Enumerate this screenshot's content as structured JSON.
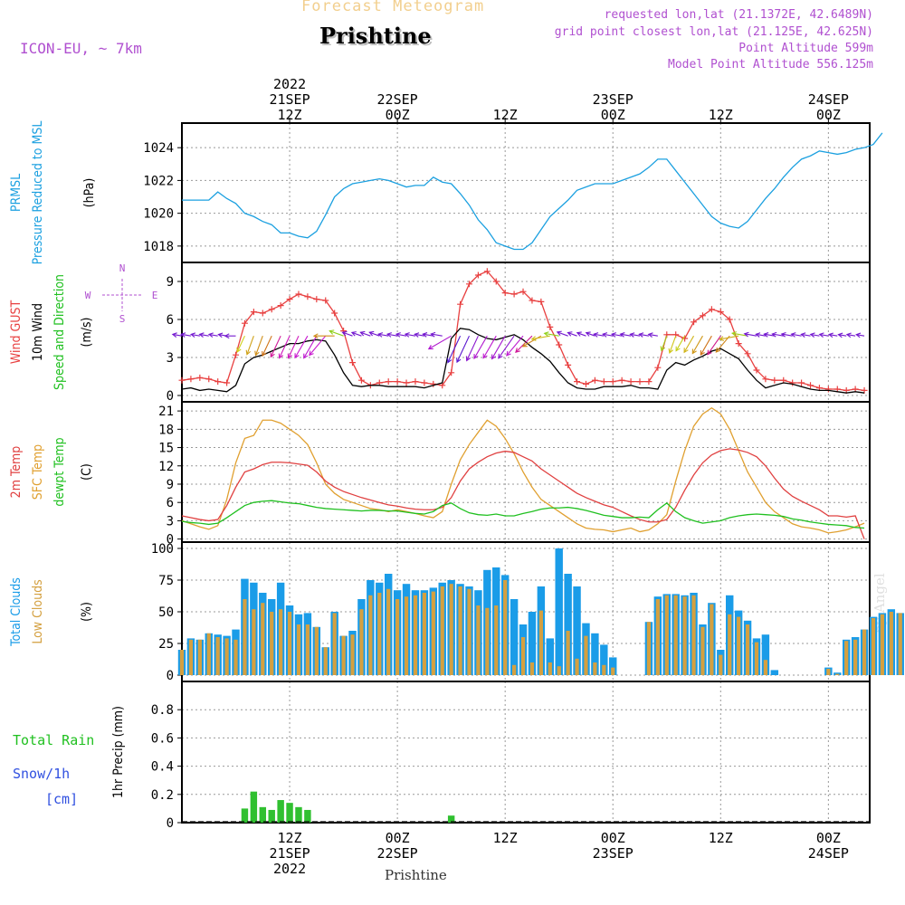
{
  "header": {
    "product": "Forecast Meteogram",
    "location": "Prishtine",
    "model": "ICON-EU, ~ 7km",
    "requested": "requested lon,lat (21.1372E, 42.6489N)",
    "gridpoint": "grid point closest lon,lat (21.125E, 42.625N)",
    "point_alt": "Point Altitude 599m",
    "model_alt": "Model Point Altitude 556.125m",
    "footer_location": "Prishtine",
    "watermark": "by Angel"
  },
  "colors": {
    "pressure": "#1ba0e0",
    "gust": "#e84040",
    "wind": "#000000",
    "temp": "#e04040",
    "sfc_temp": "#e0a030",
    "dewpt": "#20c020",
    "total_cloud": "#1a9ce8",
    "low_cloud": "#d4a040",
    "rain": "#30c030",
    "label_purple": "#b050d0",
    "label_blue": "#3050e0"
  },
  "time_axis": {
    "top_labels": [
      {
        "t": 12,
        "lines": [
          "2022",
          "21SEP",
          "12Z"
        ]
      },
      {
        "t": 24,
        "lines": [
          "22SEP",
          "00Z"
        ]
      },
      {
        "t": 36,
        "lines": [
          "12Z"
        ]
      },
      {
        "t": 48,
        "lines": [
          "23SEP",
          "00Z"
        ]
      },
      {
        "t": 60,
        "lines": [
          "12Z"
        ]
      },
      {
        "t": 72,
        "lines": [
          "24SEP",
          "00Z"
        ]
      }
    ],
    "bottom_labels": [
      {
        "t": 12,
        "lines": [
          "12Z",
          "21SEP",
          "2022"
        ]
      },
      {
        "t": 24,
        "lines": [
          "00Z",
          "22SEP"
        ]
      },
      {
        "t": 36,
        "lines": [
          "12Z"
        ]
      },
      {
        "t": 48,
        "lines": [
          "00Z",
          "23SEP"
        ]
      },
      {
        "t": 60,
        "lines": [
          "12Z"
        ]
      },
      {
        "t": 72,
        "lines": [
          "00Z",
          "24SEP"
        ]
      }
    ]
  },
  "chart_data": [
    {
      "type": "line",
      "id": "pressure",
      "ylabel": [
        "PRMSL",
        "Pressure Reduced to MSL"
      ],
      "unit": "(hPa)",
      "ylim": [
        1017,
        1025.5
      ],
      "yticks": [
        1018,
        1020,
        1022,
        1024
      ],
      "t0": 0,
      "values": [
        1020.8,
        1020.8,
        1020.8,
        1020.8,
        1021.3,
        1020.9,
        1020.6,
        1020.0,
        1019.8,
        1019.5,
        1019.3,
        1018.8,
        1018.8,
        1018.6,
        1018.5,
        1018.9,
        1019.9,
        1021.0,
        1021.5,
        1021.8,
        1021.9,
        1022.0,
        1022.1,
        1022.0,
        1021.8,
        1021.6,
        1021.7,
        1021.7,
        1022.2,
        1021.9,
        1021.8,
        1021.2,
        1020.5,
        1019.6,
        1019.0,
        1018.2,
        1018.0,
        1017.8,
        1017.8,
        1018.2,
        1019.0,
        1019.8,
        1020.3,
        1020.8,
        1021.4,
        1021.6,
        1021.8,
        1021.8,
        1021.8,
        1022.0,
        1022.2,
        1022.4,
        1022.8,
        1023.3,
        1023.3,
        1022.6,
        1021.9,
        1021.2,
        1020.5,
        1019.8,
        1019.4,
        1019.2,
        1019.1,
        1019.5,
        1020.2,
        1020.9,
        1021.5,
        1022.2,
        1022.8,
        1023.3,
        1023.5,
        1023.8,
        1023.7,
        1023.6,
        1023.7,
        1023.9,
        1024.0,
        1024.2,
        1024.9
      ]
    },
    {
      "type": "line",
      "id": "wind",
      "ylabel": [
        "Wind GUST",
        "10m Wind",
        "Speed and Direction"
      ],
      "unit": "(m/s)",
      "ylim": [
        -0.5,
        10.5
      ],
      "yticks": [
        0,
        3,
        6,
        9
      ],
      "compass": {
        "n": "N",
        "e": "E",
        "s": "S",
        "w": "W"
      },
      "t0": 0,
      "wind_speed": [
        0.5,
        0.6,
        0.4,
        0.5,
        0.4,
        0.3,
        0.8,
        2.5,
        3.0,
        3.2,
        3.5,
        3.8,
        4.1,
        4.1,
        4.3,
        4.4,
        4.3,
        3.2,
        1.8,
        0.8,
        0.7,
        0.8,
        0.8,
        0.7,
        0.7,
        0.7,
        0.7,
        0.6,
        0.8,
        1.0,
        4.5,
        5.3,
        5.2,
        4.8,
        4.5,
        4.4,
        4.6,
        4.8,
        4.4,
        3.8,
        3.3,
        2.7,
        1.8,
        1.0,
        0.6,
        0.5,
        0.5,
        0.7,
        0.7,
        0.7,
        0.8,
        0.6,
        0.6,
        0.5,
        2.0,
        2.6,
        2.4,
        2.8,
        3.1,
        3.5,
        3.7,
        3.3,
        2.9,
        2.0,
        1.2,
        0.6,
        0.8,
        1.0,
        0.9,
        0.7,
        0.5,
        0.4,
        0.4,
        0.3,
        0.2,
        0.3,
        0.2
      ],
      "gust": [
        1.2,
        1.3,
        1.4,
        1.3,
        1.1,
        1.0,
        3.2,
        5.7,
        6.6,
        6.5,
        6.8,
        7.1,
        7.6,
        8.0,
        7.8,
        7.6,
        7.5,
        6.5,
        5.1,
        2.6,
        1.2,
        0.8,
        1.0,
        1.1,
        1.1,
        1.0,
        1.1,
        1.0,
        0.9,
        0.8,
        1.8,
        7.2,
        8.8,
        9.5,
        9.8,
        9.0,
        8.1,
        8.0,
        8.2,
        7.5,
        7.4,
        5.4,
        4.0,
        2.4,
        1.1,
        0.9,
        1.2,
        1.1,
        1.1,
        1.2,
        1.1,
        1.1,
        1.1,
        2.2,
        4.8,
        4.8,
        4.5,
        5.8,
        6.3,
        6.8,
        6.6,
        6.0,
        4.1,
        3.3,
        2.0,
        1.3,
        1.2,
        1.2,
        1.0,
        1.0,
        0.8,
        0.6,
        0.5,
        0.5,
        0.4,
        0.5,
        0.4
      ],
      "dir_deg": [
        100,
        100,
        100,
        100,
        100,
        100,
        90,
        25,
        20,
        20,
        25,
        25,
        25,
        25,
        30,
        30,
        40,
        90,
        110,
        110,
        110,
        110,
        110,
        100,
        100,
        100,
        100,
        100,
        100,
        100,
        60,
        25,
        25,
        25,
        30,
        30,
        30,
        35,
        40,
        45,
        60,
        80,
        100,
        110,
        110,
        110,
        110,
        100,
        100,
        100,
        100,
        100,
        100,
        100,
        20,
        20,
        30,
        30,
        30,
        30,
        35,
        40,
        80,
        100,
        100,
        100,
        100,
        100,
        100,
        100,
        100,
        100,
        100,
        100,
        100,
        100,
        100
      ]
    },
    {
      "type": "line",
      "id": "temperature",
      "ylabel": [
        "2m Temp",
        "SFC Temp",
        "dewpt Temp"
      ],
      "unit": "(C)",
      "ylim": [
        -0.5,
        22.5
      ],
      "yticks": [
        0,
        3,
        6,
        9,
        12,
        15,
        18,
        21
      ],
      "t0": 0,
      "temp2m": [
        3.8,
        3.5,
        3.2,
        3.0,
        3.2,
        5.5,
        8.5,
        11.0,
        11.5,
        12.2,
        12.6,
        12.6,
        12.5,
        12.3,
        12.1,
        11.0,
        9.5,
        8.5,
        7.8,
        7.3,
        6.8,
        6.4,
        6.0,
        5.6,
        5.4,
        5.1,
        4.9,
        4.8,
        4.8,
        5.2,
        6.8,
        9.5,
        11.5,
        12.6,
        13.5,
        14.1,
        14.4,
        14.2,
        13.5,
        12.8,
        11.5,
        10.5,
        9.5,
        8.5,
        7.5,
        6.8,
        6.2,
        5.6,
        5.2,
        4.5,
        3.8,
        3.2,
        2.8,
        2.8,
        3.2,
        5.2,
        8.0,
        10.5,
        12.5,
        13.8,
        14.5,
        14.8,
        14.6,
        14.2,
        13.5,
        12.0,
        10.0,
        8.2,
        7.0,
        6.2,
        5.5,
        4.8,
        3.8,
        3.8,
        3.6,
        3.8,
        0.0
      ],
      "sfc": [
        3.0,
        2.5,
        2.0,
        1.6,
        2.2,
        6.5,
        12.5,
        16.5,
        17.0,
        19.5,
        19.5,
        19.0,
        18.0,
        17.0,
        15.5,
        12.5,
        9.0,
        7.5,
        6.5,
        6.0,
        5.5,
        5.0,
        4.8,
        4.5,
        4.8,
        4.5,
        4.2,
        3.8,
        3.5,
        4.5,
        9.0,
        13.0,
        15.5,
        17.5,
        19.5,
        18.5,
        16.5,
        14.0,
        11.0,
        8.5,
        6.5,
        5.5,
        4.5,
        3.5,
        2.5,
        1.8,
        1.6,
        1.5,
        1.2,
        1.5,
        1.8,
        1.2,
        1.5,
        2.5,
        4.0,
        9.5,
        14.5,
        18.5,
        20.5,
        21.5,
        20.5,
        18.0,
        14.5,
        11.0,
        8.5,
        6.0,
        4.5,
        3.5,
        2.5,
        2.0,
        1.8,
        1.5,
        1.0,
        1.2,
        1.5,
        2.0,
        2.6
      ],
      "dewpt": [
        2.9,
        2.7,
        2.6,
        2.4,
        2.6,
        3.5,
        4.5,
        5.5,
        6.0,
        6.2,
        6.3,
        6.1,
        5.9,
        5.8,
        5.5,
        5.2,
        5.0,
        4.9,
        4.8,
        4.7,
        4.6,
        4.7,
        4.7,
        4.6,
        4.6,
        4.4,
        4.2,
        4.1,
        4.5,
        5.5,
        5.9,
        5.0,
        4.3,
        4.0,
        3.9,
        4.1,
        3.8,
        3.8,
        4.2,
        4.5,
        4.9,
        5.1,
        5.1,
        5.2,
        5.0,
        4.7,
        4.3,
        3.9,
        3.7,
        3.5,
        3.5,
        3.6,
        3.5,
        4.8,
        5.9,
        4.5,
        3.5,
        3.0,
        2.6,
        2.8,
        3.0,
        3.5,
        3.8,
        4.0,
        4.1,
        4.0,
        3.9,
        3.7,
        3.3,
        3.1,
        2.8,
        2.6,
        2.4,
        2.3,
        2.2,
        1.9,
        1.8
      ]
    },
    {
      "type": "bar",
      "id": "clouds",
      "ylabel": [
        "Total Clouds",
        "Low Clouds"
      ],
      "unit": "(%)",
      "ylim": [
        -5,
        105
      ],
      "yticks": [
        0,
        25,
        50,
        75,
        100
      ],
      "t0": 0,
      "total": [
        20,
        29,
        28,
        33,
        32,
        31,
        36,
        76,
        73,
        65,
        60,
        73,
        55,
        48,
        49,
        38,
        22,
        50,
        31,
        35,
        60,
        75,
        73,
        80,
        67,
        72,
        67,
        67,
        69,
        73,
        75,
        72,
        70,
        67,
        83,
        85,
        79,
        60,
        40,
        50,
        70,
        29,
        100,
        80,
        70,
        41,
        33,
        24,
        14,
        0,
        0,
        0,
        42,
        62,
        64,
        64,
        63,
        65,
        40,
        57,
        20,
        63,
        51,
        43,
        29,
        32,
        4,
        0,
        0,
        0,
        0,
        0,
        6,
        2,
        28,
        30,
        36,
        46,
        49,
        52,
        49
      ],
      "low": [
        20,
        28,
        28,
        33,
        30,
        29,
        28,
        60,
        52,
        57,
        50,
        52,
        50,
        40,
        40,
        38,
        22,
        49,
        31,
        32,
        52,
        63,
        65,
        68,
        60,
        62,
        63,
        65,
        66,
        70,
        72,
        70,
        68,
        55,
        53,
        55,
        75,
        8,
        30,
        10,
        51,
        10,
        7,
        35,
        13,
        31,
        10,
        8,
        6,
        0,
        0,
        0,
        42,
        60,
        63,
        63,
        62,
        63,
        38,
        56,
        16,
        48,
        46,
        40,
        26,
        12,
        0,
        0,
        0,
        0,
        0,
        0,
        5,
        1,
        27,
        28,
        36,
        45,
        48,
        50,
        49
      ]
    },
    {
      "type": "bar",
      "id": "precip",
      "ylabel": [
        "1hr Precip (mm)"
      ],
      "left_labels": {
        "rain": "Total  Rain",
        "snow": "Snow/1h",
        "cm": "[cm]"
      },
      "unit": "mm",
      "ylim": [
        0,
        1.0
      ],
      "yticks": [
        0,
        0.2,
        0.4,
        0.6,
        0.8
      ],
      "tick_labels": [
        "0",
        "0.2",
        "0.4",
        "0.6",
        "0.8"
      ],
      "t0": 0,
      "values": [
        0,
        0,
        0,
        0,
        0,
        0,
        0,
        0.1,
        0.22,
        0.11,
        0.09,
        0.16,
        0.14,
        0.11,
        0.09,
        0,
        0,
        0,
        0,
        0,
        0,
        0,
        0,
        0,
        0,
        0,
        0,
        0,
        0,
        0,
        0.05,
        0,
        0,
        0,
        0,
        0,
        0,
        0,
        0,
        0,
        0,
        0,
        0,
        0,
        0,
        0,
        0,
        0,
        0,
        0,
        0,
        0,
        0,
        0,
        0,
        0,
        0,
        0,
        0,
        0,
        0,
        0,
        0,
        0,
        0,
        0,
        0,
        0,
        0,
        0,
        0,
        0,
        0,
        0,
        0,
        0,
        0
      ]
    }
  ]
}
